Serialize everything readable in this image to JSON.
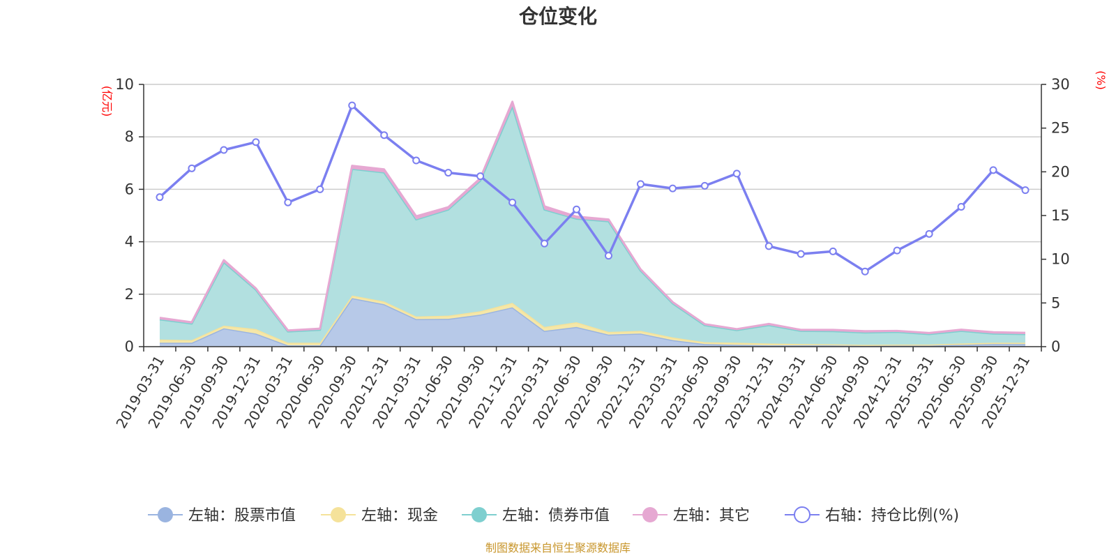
{
  "chart_data": {
    "type": "area",
    "title": "仓位变化",
    "left_axis_unit": "(亿元)",
    "right_axis_unit": "(%)",
    "ylim_left": [
      0,
      10
    ],
    "yticks_left": [
      0,
      2,
      4,
      6,
      8,
      10
    ],
    "ylim_right": [
      0,
      30
    ],
    "yticks_right": [
      0,
      5,
      10,
      15,
      20,
      25,
      30
    ],
    "categories": [
      "2019-03-31",
      "2019-06-30",
      "2019-09-30",
      "2019-12-31",
      "2020-03-31",
      "2020-06-30",
      "2020-09-30",
      "2020-12-31",
      "2021-03-31",
      "2021-06-30",
      "2021-09-30",
      "2021-12-31",
      "2022-03-31",
      "2022-06-30",
      "2022-09-30",
      "2022-12-31",
      "2023-03-31",
      "2023-06-30",
      "2023-09-30",
      "2023-12-31",
      "2024-03-31",
      "2024-06-30",
      "2024-09-30",
      "2024-12-31",
      "2025-03-31",
      "2025-06-30",
      "2025-09-30",
      "2025-12-31"
    ],
    "stacked_series": [
      {
        "name": "左轴：股票市值",
        "color": "#9ab4e0",
        "fill": "#b7c9e8",
        "values": [
          0.15,
          0.15,
          0.7,
          0.5,
          0.05,
          0.05,
          1.85,
          1.62,
          1.05,
          1.06,
          1.22,
          1.5,
          0.6,
          0.75,
          0.46,
          0.5,
          0.25,
          0.1,
          0.07,
          0.05,
          0.05,
          0.05,
          0.04,
          0.04,
          0.05,
          0.07,
          0.1,
          0.1
        ]
      },
      {
        "name": "左轴：现金",
        "color": "#f5e29a",
        "fill": "#f5e7a8",
        "values": [
          0.12,
          0.1,
          0.1,
          0.17,
          0.1,
          0.1,
          0.1,
          0.1,
          0.1,
          0.12,
          0.13,
          0.17,
          0.15,
          0.18,
          0.1,
          0.1,
          0.1,
          0.07,
          0.08,
          0.07,
          0.05,
          0.04,
          0.03,
          0.04,
          0.03,
          0.05,
          0.05,
          0.05
        ]
      },
      {
        "name": "左轴：债券市值",
        "color": "#7ecfcf",
        "fill": "#b2e0e0",
        "values": [
          0.77,
          0.63,
          2.42,
          1.5,
          0.43,
          0.49,
          4.83,
          4.92,
          3.7,
          4.05,
          4.98,
          7.5,
          4.48,
          3.95,
          4.22,
          2.3,
          1.3,
          0.65,
          0.48,
          0.7,
          0.5,
          0.5,
          0.47,
          0.48,
          0.4,
          0.48,
          0.35,
          0.33
        ]
      },
      {
        "name": "左轴：其它",
        "color": "#e6a8d2",
        "fill": "#e6a8d2",
        "values": [
          0.06,
          0.05,
          0.08,
          0.05,
          0.04,
          0.05,
          0.12,
          0.12,
          0.12,
          0.09,
          0.09,
          0.17,
          0.12,
          0.08,
          0.07,
          0.05,
          0.05,
          0.04,
          0.04,
          0.05,
          0.04,
          0.05,
          0.05,
          0.04,
          0.04,
          0.05,
          0.05,
          0.05
        ]
      }
    ],
    "line_series": {
      "name": "右轴：持仓比例(%)",
      "color": "#7b7ff0",
      "values": [
        17.1,
        20.4,
        22.5,
        23.4,
        16.5,
        18.0,
        27.6,
        24.2,
        21.3,
        19.9,
        19.5,
        16.5,
        11.8,
        15.7,
        10.4,
        18.6,
        18.1,
        18.4,
        19.8,
        11.5,
        10.6,
        10.9,
        8.6,
        11.0,
        12.9,
        16.0,
        20.2,
        17.9
      ]
    }
  },
  "footer": "制图数据来自恒生聚源数据库"
}
